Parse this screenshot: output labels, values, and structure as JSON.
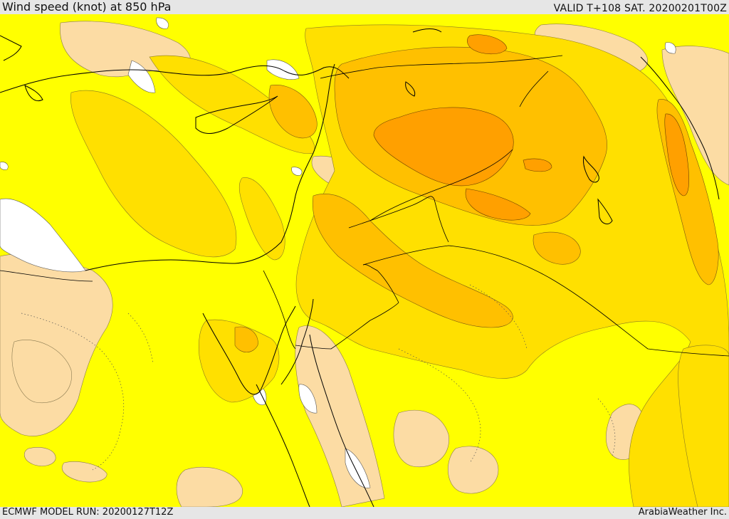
{
  "header": {
    "title": "Wind speed (knot) at 850 hPa",
    "valid_time": "VALID T+108 SAT. 20200201T00Z"
  },
  "footer": {
    "model_run": "ECMWF MODEL RUN: 20200127T12Z",
    "credit": "ArabiaWeather Inc."
  },
  "colors": {
    "calm": "#ffffff",
    "light": "#fcdca4",
    "moderate": "#ffff00",
    "fresh": "#ffe000",
    "strong": "#ffc000",
    "very_strong": "#ffa000",
    "border_line": "#000000"
  }
}
